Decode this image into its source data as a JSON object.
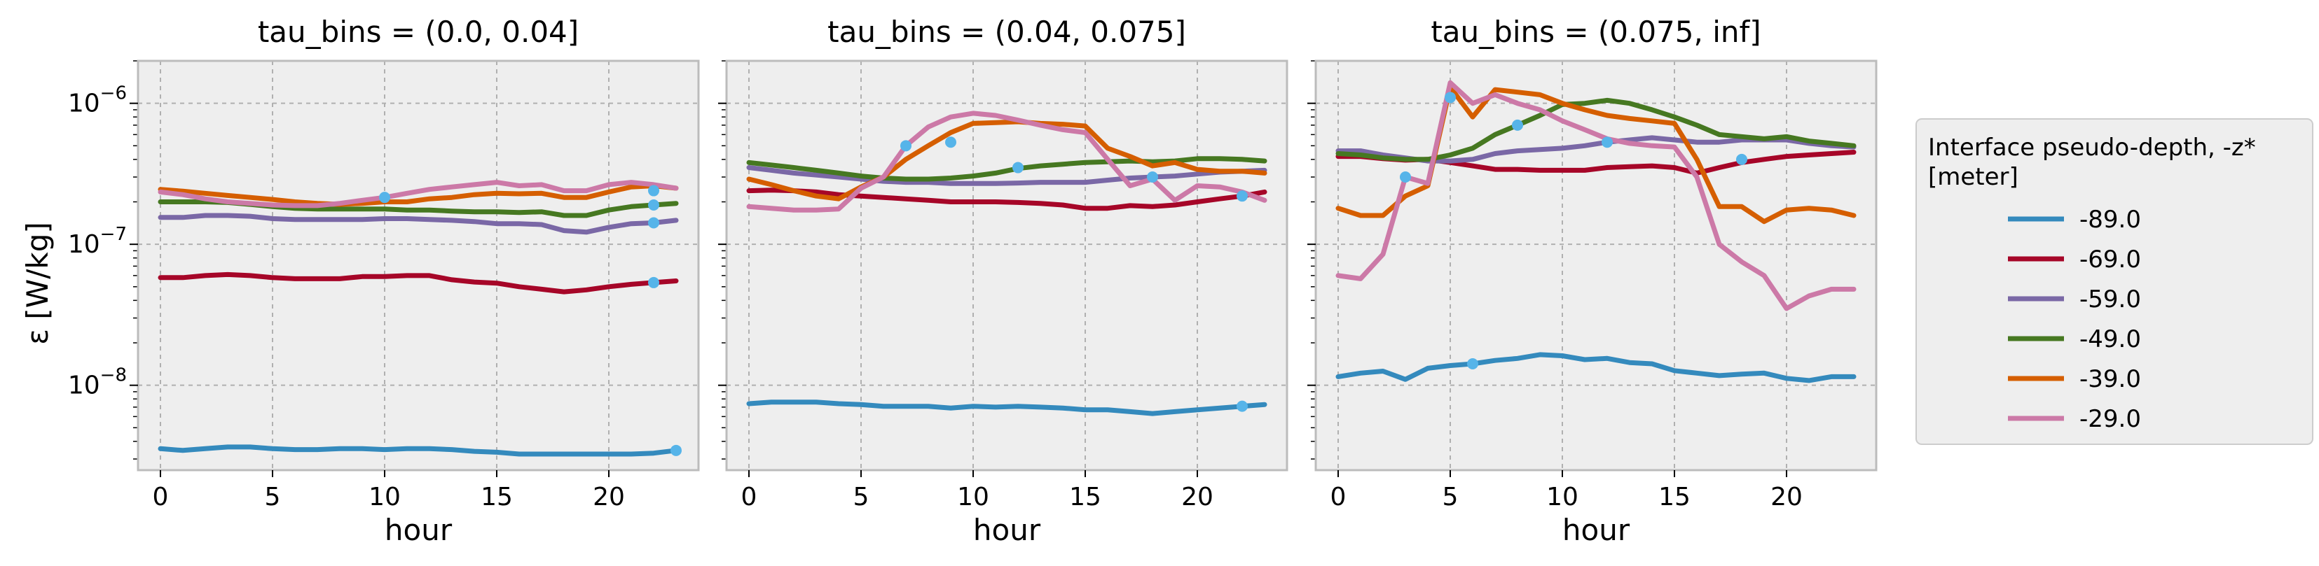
{
  "chart_data": {
    "type": "line",
    "ylabel": "ε [W/kg]",
    "yscale": "log",
    "ylim": [
      2.5e-09,
      2e-06
    ],
    "y_ticks": [
      {
        "value": 1e-08,
        "label_base": "10",
        "label_exp": "−8"
      },
      {
        "value": 1e-07,
        "label_base": "10",
        "label_exp": "−7"
      },
      {
        "value": 1e-06,
        "label_base": "10",
        "label_exp": "−6"
      }
    ],
    "grid": true,
    "legend": {
      "title_line1": "Interface pseudo-depth, -z*",
      "title_line2": "[meter]",
      "placement": "right",
      "entries": [
        "-89.0",
        "-69.0",
        "-59.0",
        "-49.0",
        "-39.0",
        "-29.0"
      ]
    },
    "colors": {
      "-89.0": "#348abd",
      "-69.0": "#a60628",
      "-59.0": "#7a68a6",
      "-49.0": "#467821",
      "-39.0": "#d55e00",
      "-29.0": "#cc79a7",
      "marker": "#56b4e9",
      "axes_bg": "#eeeeee"
    },
    "panels": [
      {
        "title": "tau_bins = (0.0, 0.04]",
        "xlabel": "hour",
        "xlim": [
          -1,
          24
        ],
        "x_ticks": [
          0,
          5,
          10,
          15,
          20
        ],
        "x": [
          0,
          1,
          2,
          3,
          4,
          5,
          6,
          7,
          8,
          9,
          10,
          11,
          12,
          13,
          14,
          15,
          16,
          17,
          18,
          19,
          20,
          21,
          22,
          23
        ],
        "series": [
          {
            "name": "-89.0",
            "values": [
              3.55e-09,
              3.45e-09,
              3.55e-09,
              3.65e-09,
              3.65e-09,
              3.55e-09,
              3.5e-09,
              3.5e-09,
              3.55e-09,
              3.55e-09,
              3.5e-09,
              3.55e-09,
              3.55e-09,
              3.5e-09,
              3.4e-09,
              3.35e-09,
              3.25e-09,
              3.25e-09,
              3.25e-09,
              3.25e-09,
              3.25e-09,
              3.25e-09,
              3.3e-09,
              3.45e-09
            ]
          },
          {
            "name": "-69.0",
            "values": [
              5.8e-08,
              5.8e-08,
              6e-08,
              6.1e-08,
              6e-08,
              5.8e-08,
              5.7e-08,
              5.7e-08,
              5.7e-08,
              5.9e-08,
              5.9e-08,
              6e-08,
              6e-08,
              5.6e-08,
              5.4e-08,
              5.3e-08,
              5e-08,
              4.8e-08,
              4.6e-08,
              4.75e-08,
              5e-08,
              5.2e-08,
              5.35e-08,
              5.5e-08
            ]
          },
          {
            "name": "-59.0",
            "values": [
              1.55e-07,
              1.55e-07,
              1.6e-07,
              1.6e-07,
              1.58e-07,
              1.52e-07,
              1.5e-07,
              1.5e-07,
              1.5e-07,
              1.5e-07,
              1.52e-07,
              1.52e-07,
              1.5e-07,
              1.48e-07,
              1.45e-07,
              1.4e-07,
              1.4e-07,
              1.38e-07,
              1.25e-07,
              1.22e-07,
              1.32e-07,
              1.4e-07,
              1.42e-07,
              1.48e-07
            ]
          },
          {
            "name": "-49.0",
            "values": [
              2e-07,
              2e-07,
              2e-07,
              1.98e-07,
              1.92e-07,
              1.85e-07,
              1.8e-07,
              1.78e-07,
              1.78e-07,
              1.78e-07,
              1.78e-07,
              1.75e-07,
              1.75e-07,
              1.72e-07,
              1.7e-07,
              1.7e-07,
              1.68e-07,
              1.7e-07,
              1.6e-07,
              1.6e-07,
              1.75e-07,
              1.85e-07,
              1.9e-07,
              1.95e-07
            ]
          },
          {
            "name": "-39.0",
            "values": [
              2.45e-07,
              2.38e-07,
              2.3e-07,
              2.22e-07,
              2.15e-07,
              2.08e-07,
              2e-07,
              1.95e-07,
              1.92e-07,
              1.95e-07,
              2e-07,
              2e-07,
              2.1e-07,
              2.15e-07,
              2.25e-07,
              2.3e-07,
              2.28e-07,
              2.3e-07,
              2.15e-07,
              2.15e-07,
              2.35e-07,
              2.55e-07,
              2.6e-07,
              2.5e-07
            ]
          },
          {
            "name": "-29.0",
            "values": [
              2.35e-07,
              2.25e-07,
              2.1e-07,
              2e-07,
              1.95e-07,
              1.9e-07,
              1.88e-07,
              1.88e-07,
              1.95e-07,
              2.05e-07,
              2.15e-07,
              2.3e-07,
              2.45e-07,
              2.55e-07,
              2.65e-07,
              2.75e-07,
              2.6e-07,
              2.65e-07,
              2.4e-07,
              2.4e-07,
              2.65e-07,
              2.75e-07,
              2.65e-07,
              2.5e-07
            ]
          }
        ],
        "markers": [
          {
            "x": 10,
            "y": 2.15e-07
          },
          {
            "x": 22,
            "y": 2.4e-07
          },
          {
            "x": 22,
            "y": 1.9e-07
          },
          {
            "x": 22,
            "y": 1.42e-07
          },
          {
            "x": 22,
            "y": 5.35e-08
          },
          {
            "x": 23,
            "y": 3.45e-09
          }
        ]
      },
      {
        "title": "tau_bins = (0.04, 0.075]",
        "xlabel": "hour",
        "xlim": [
          -1,
          24
        ],
        "x_ticks": [
          0,
          5,
          10,
          15,
          20
        ],
        "x": [
          0,
          1,
          2,
          3,
          4,
          5,
          6,
          7,
          8,
          9,
          10,
          11,
          12,
          13,
          14,
          15,
          16,
          17,
          18,
          19,
          20,
          21,
          22,
          23
        ],
        "series": [
          {
            "name": "-89.0",
            "values": [
              7.4e-09,
              7.6e-09,
              7.6e-09,
              7.6e-09,
              7.4e-09,
              7.3e-09,
              7.1e-09,
              7.1e-09,
              7.1e-09,
              6.9e-09,
              7.1e-09,
              7e-09,
              7.1e-09,
              7e-09,
              6.9e-09,
              6.7e-09,
              6.7e-09,
              6.5e-09,
              6.3e-09,
              6.5e-09,
              6.7e-09,
              6.9e-09,
              7.1e-09,
              7.3e-09
            ]
          },
          {
            "name": "-69.0",
            "values": [
              2.4e-07,
              2.42e-07,
              2.4e-07,
              2.35e-07,
              2.25e-07,
              2.2e-07,
              2.15e-07,
              2.1e-07,
              2.05e-07,
              2e-07,
              2e-07,
              2e-07,
              1.98e-07,
              1.95e-07,
              1.9e-07,
              1.8e-07,
              1.8e-07,
              1.88e-07,
              1.85e-07,
              1.9e-07,
              2e-07,
              2.1e-07,
              2.2e-07,
              2.35e-07
            ]
          },
          {
            "name": "-59.0",
            "values": [
              3.5e-07,
              3.35e-07,
              3.2e-07,
              3.1e-07,
              3e-07,
              2.9e-07,
              2.8e-07,
              2.75e-07,
              2.75e-07,
              2.7e-07,
              2.7e-07,
              2.7e-07,
              2.72e-07,
              2.75e-07,
              2.75e-07,
              2.75e-07,
              2.85e-07,
              2.95e-07,
              3e-07,
              3.05e-07,
              3.15e-07,
              3.25e-07,
              3.3e-07,
              3.35e-07
            ]
          },
          {
            "name": "-49.0",
            "values": [
              3.8e-07,
              3.65e-07,
              3.5e-07,
              3.35e-07,
              3.2e-07,
              3.05e-07,
              2.95e-07,
              2.9e-07,
              2.9e-07,
              2.95e-07,
              3.05e-07,
              3.2e-07,
              3.45e-07,
              3.6e-07,
              3.7e-07,
              3.8e-07,
              3.85e-07,
              3.9e-07,
              3.85e-07,
              3.9e-07,
              4.05e-07,
              4.05e-07,
              4e-07,
              3.9e-07
            ]
          },
          {
            "name": "-39.0",
            "values": [
              2.9e-07,
              2.65e-07,
              2.4e-07,
              2.2e-07,
              2.1e-07,
              2.55e-07,
              3e-07,
              4e-07,
              5e-07,
              6.2e-07,
              7.2e-07,
              7.3e-07,
              7.4e-07,
              7.2e-07,
              7.1e-07,
              6.9e-07,
              4.8e-07,
              4.2e-07,
              3.6e-07,
              3.8e-07,
              3.4e-07,
              3.3e-07,
              3.3e-07,
              3.2e-07
            ]
          },
          {
            "name": "-29.0",
            "values": [
              1.85e-07,
              1.8e-07,
              1.75e-07,
              1.75e-07,
              1.78e-07,
              2.5e-07,
              3e-07,
              5e-07,
              6.8e-07,
              8e-07,
              8.5e-07,
              8.2e-07,
              7.6e-07,
              7e-07,
              6.5e-07,
              6.2e-07,
              4e-07,
              2.6e-07,
              2.9e-07,
              2.05e-07,
              2.6e-07,
              2.55e-07,
              2.35e-07,
              2.05e-07
            ]
          }
        ],
        "markers": [
          {
            "x": 7,
            "y": 5e-07
          },
          {
            "x": 9,
            "y": 5.3e-07
          },
          {
            "x": 12,
            "y": 3.5e-07
          },
          {
            "x": 18,
            "y": 3e-07
          },
          {
            "x": 22,
            "y": 2.2e-07
          },
          {
            "x": 22,
            "y": 7.1e-09
          }
        ]
      },
      {
        "title": "tau_bins = (0.075, inf]",
        "xlabel": "hour",
        "xlim": [
          -1,
          24
        ],
        "x_ticks": [
          0,
          5,
          10,
          15,
          20
        ],
        "x": [
          0,
          1,
          2,
          3,
          4,
          5,
          6,
          7,
          8,
          9,
          10,
          11,
          12,
          13,
          14,
          15,
          16,
          17,
          18,
          19,
          20,
          21,
          22,
          23
        ],
        "series": [
          {
            "name": "-89.0",
            "values": [
              1.15e-08,
              1.22e-08,
              1.26e-08,
              1.1e-08,
              1.32e-08,
              1.38e-08,
              1.42e-08,
              1.5e-08,
              1.55e-08,
              1.65e-08,
              1.62e-08,
              1.52e-08,
              1.55e-08,
              1.45e-08,
              1.42e-08,
              1.27e-08,
              1.22e-08,
              1.17e-08,
              1.2e-08,
              1.22e-08,
              1.12e-08,
              1.08e-08,
              1.15e-08,
              1.15e-08
            ]
          },
          {
            "name": "-69.0",
            "values": [
              4.2e-07,
              4.2e-07,
              4.05e-07,
              3.95e-07,
              4e-07,
              3.8e-07,
              3.6e-07,
              3.4e-07,
              3.4e-07,
              3.35e-07,
              3.35e-07,
              3.35e-07,
              3.5e-07,
              3.55e-07,
              3.6e-07,
              3.5e-07,
              3.2e-07,
              3.5e-07,
              3.8e-07,
              4e-07,
              4.2e-07,
              4.3e-07,
              4.4e-07,
              4.5e-07
            ]
          },
          {
            "name": "-59.0",
            "values": [
              4.6e-07,
              4.6e-07,
              4.3e-07,
              4.1e-07,
              3.9e-07,
              3.9e-07,
              4e-07,
              4.4e-07,
              4.6e-07,
              4.7e-07,
              4.8e-07,
              5e-07,
              5.3e-07,
              5.5e-07,
              5.7e-07,
              5.5e-07,
              5.3e-07,
              5.3e-07,
              5.5e-07,
              5.5e-07,
              5.5e-07,
              5.2e-07,
              5e-07,
              4.9e-07
            ]
          },
          {
            "name": "-49.0",
            "values": [
              4.4e-07,
              4.3e-07,
              4.1e-07,
              4e-07,
              4e-07,
              4.3e-07,
              4.8e-07,
              6e-07,
              7e-07,
              8.2e-07,
              9.8e-07,
              1e-06,
              1.05e-06,
              1e-06,
              9e-07,
              8e-07,
              7e-07,
              6e-07,
              5.8e-07,
              5.6e-07,
              5.8e-07,
              5.4e-07,
              5.2e-07,
              5e-07
            ]
          },
          {
            "name": "-39.0",
            "values": [
              1.8e-07,
              1.6e-07,
              1.6e-07,
              2.2e-07,
              2.6e-07,
              1.3e-06,
              8e-07,
              1.25e-06,
              1.2e-06,
              1.15e-06,
              1e-06,
              9e-07,
              8.2e-07,
              7.8e-07,
              7.5e-07,
              7.2e-07,
              4e-07,
              1.85e-07,
              1.85e-07,
              1.45e-07,
              1.75e-07,
              1.8e-07,
              1.75e-07,
              1.6e-07
            ]
          },
          {
            "name": "-29.0",
            "values": [
              6e-08,
              5.7e-08,
              8.5e-08,
              3e-07,
              2.7e-07,
              1.4e-06,
              1e-06,
              1.15e-06,
              1e-06,
              9e-07,
              7.5e-07,
              6.5e-07,
              5.6e-07,
              5.2e-07,
              5e-07,
              4.9e-07,
              3e-07,
              1e-07,
              7.5e-08,
              6e-08,
              3.5e-08,
              4.3e-08,
              4.8e-08,
              4.8e-08
            ]
          }
        ],
        "markers": [
          {
            "x": 3,
            "y": 3e-07
          },
          {
            "x": 5,
            "y": 1.1e-06
          },
          {
            "x": 6,
            "y": 1.42e-08
          },
          {
            "x": 8,
            "y": 7e-07
          },
          {
            "x": 12,
            "y": 5.3e-07
          },
          {
            "x": 18,
            "y": 4e-07
          }
        ]
      }
    ]
  }
}
